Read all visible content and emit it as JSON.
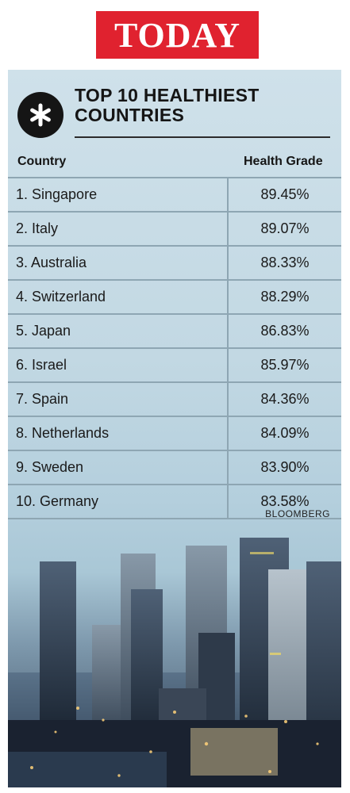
{
  "logo": {
    "text": "TODAY"
  },
  "infographic": {
    "badge_icon": "asterisk-icon",
    "title_line1": "TOP 10 HEALTHIEST",
    "title_line2": "COUNTRIES",
    "columns": {
      "country": "Country",
      "grade": "Health Grade"
    },
    "rows": [
      {
        "country": "1. Singapore",
        "grade": "89.45%"
      },
      {
        "country": "2. Italy",
        "grade": "89.07%"
      },
      {
        "country": "3. Australia",
        "grade": "88.33%"
      },
      {
        "country": "4. Switzerland",
        "grade": "88.29%"
      },
      {
        "country": "5. Japan",
        "grade": "86.83%"
      },
      {
        "country": "6. Israel",
        "grade": "85.97%"
      },
      {
        "country": "7. Spain",
        "grade": "84.36%"
      },
      {
        "country": "8. Netherlands",
        "grade": "84.09%"
      },
      {
        "country": "9. Sweden",
        "grade": "83.90%"
      },
      {
        "country": "10. Germany",
        "grade": "83.58%"
      }
    ],
    "credit": "BLOOMBERG"
  },
  "colors": {
    "brand_red": "#e0222f",
    "badge": "#151515",
    "grid_line": "#8ea6b3"
  }
}
